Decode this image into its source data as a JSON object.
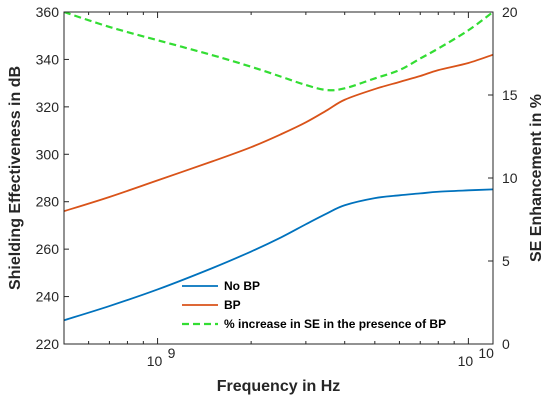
{
  "chart_data": {
    "type": "line",
    "title": "",
    "xlabel": "Frequency in Hz",
    "ylabel_left": "Shielding Effectiveness in dB",
    "ylabel_right": "SE Enhancement in %",
    "x_scale": "log",
    "xlim": [
      500000000,
      12000000000
    ],
    "ylim_left": [
      220,
      360
    ],
    "ylim_right": [
      0,
      20
    ],
    "x_major_ticks": [
      {
        "value": 1000000000,
        "base": "10",
        "exp": "9"
      },
      {
        "value": 10000000000,
        "base": "10",
        "exp": "10"
      }
    ],
    "y_left_ticks": [
      220,
      240,
      260,
      280,
      300,
      320,
      340,
      360
    ],
    "y_right_ticks": [
      0,
      5,
      10,
      15,
      20
    ],
    "grid": false,
    "legend_position": "bottom-left",
    "x": [
      500000000,
      700000000,
      1000000000,
      1500000000,
      2000000000,
      2500000000,
      3000000000,
      3500000000,
      4000000000,
      5000000000,
      6000000000,
      7000000000,
      8000000000,
      10000000000,
      12000000000
    ],
    "series": [
      {
        "name": "No BP",
        "axis": "left",
        "color": "#0072BD",
        "dash": "solid",
        "values": [
          230,
          236,
          243,
          252,
          259,
          265,
          270.5,
          275,
          278.5,
          281.5,
          282.7,
          283.5,
          284.2,
          284.8,
          285.2
        ]
      },
      {
        "name": "BP",
        "axis": "left",
        "color": "#D95319",
        "dash": "solid",
        "values": [
          276,
          282,
          289,
          297,
          303,
          308.5,
          313.5,
          318.5,
          323,
          327.5,
          330.5,
          333,
          335.5,
          338.5,
          342
        ]
      },
      {
        "name": "% increase in SE in the presence of BP",
        "axis": "right",
        "color": "#33DD33",
        "dash": "dashed",
        "values": [
          20,
          19.1,
          18.3,
          17.4,
          16.7,
          16.1,
          15.6,
          15.3,
          15.4,
          16.0,
          16.5,
          17.2,
          17.8,
          18.9,
          20
        ]
      }
    ]
  }
}
